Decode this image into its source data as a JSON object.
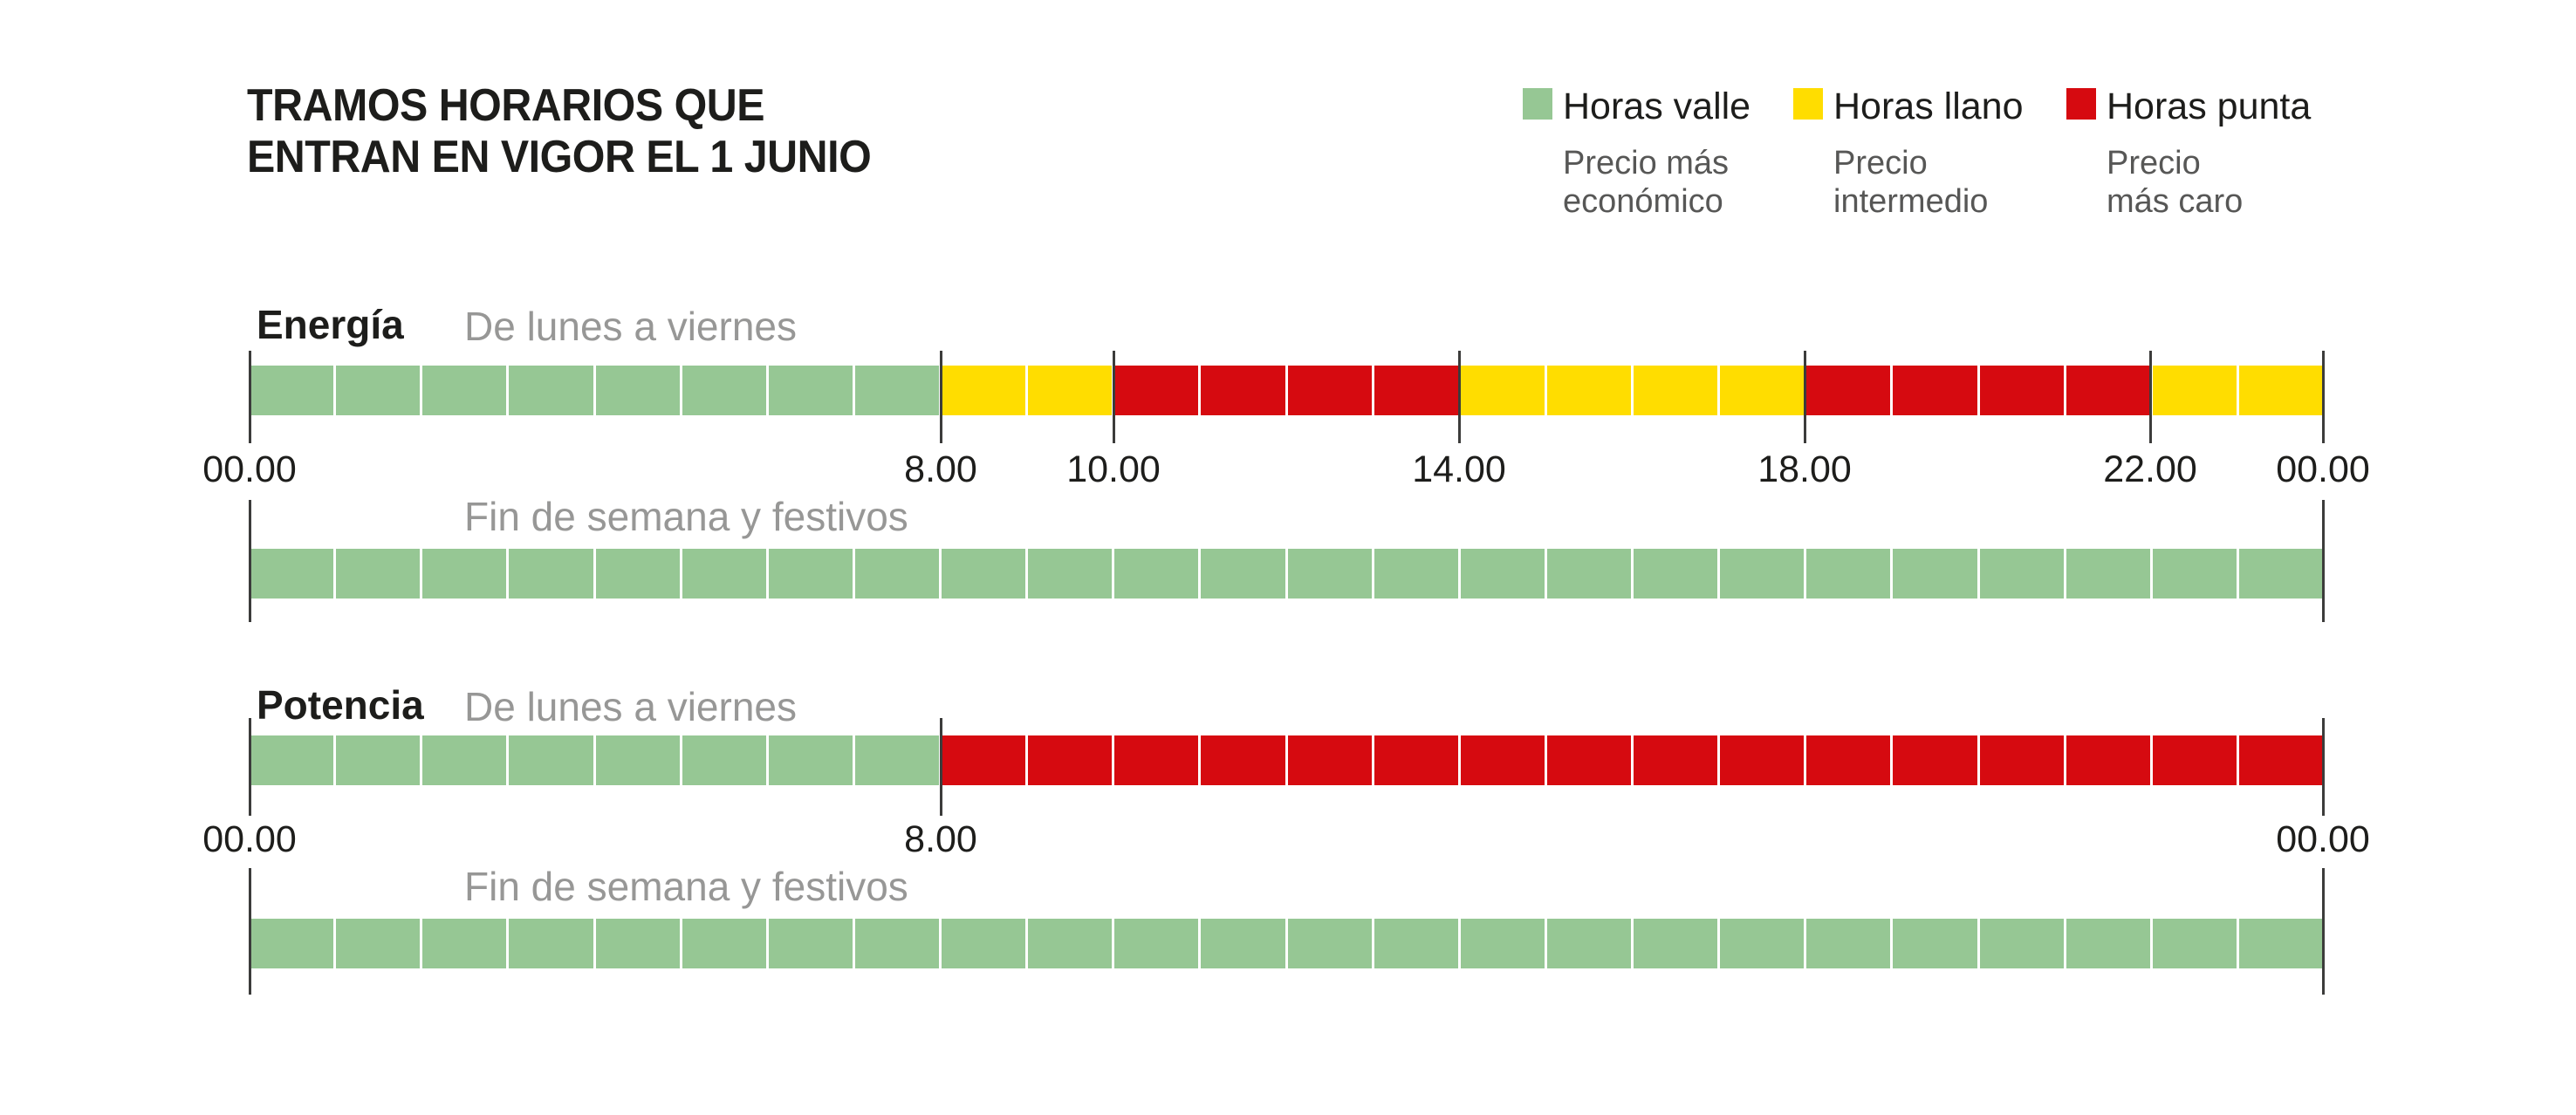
{
  "title": {
    "line1": "TRAMOS HORARIOS QUE",
    "line2": "ENTRAN EN VIGOR EL 1 JUNIO"
  },
  "legend": [
    {
      "key": "valle",
      "label": "Horas valle",
      "desc_line1": "Precio más",
      "desc_line2": "económico",
      "color": "#96c794"
    },
    {
      "key": "llano",
      "label": "Horas llano",
      "desc_line1": "Precio",
      "desc_line2": "intermedio",
      "color": "#ffdd00"
    },
    {
      "key": "punta",
      "label": "Horas punta",
      "desc_line1": "Precio",
      "desc_line2": "más caro",
      "color": "#d60a10"
    }
  ],
  "colors": {
    "valle": "#96c794",
    "llano": "#ffdd00",
    "punta": "#d60a10",
    "tick": "#3c3c3b",
    "axis_text": "#1d1d1b",
    "row_sublabel": "#979796",
    "legend_desc": "#575756"
  },
  "chart_data": {
    "type": "bar",
    "title": "TRAMOS HORARIOS QUE ENTRAN EN VIGOR EL 1 JUNIO",
    "x_unit": "hours",
    "x_range": [
      0,
      24
    ],
    "hours_per_row": 24,
    "grid": false,
    "legend_position": "top-right",
    "category_names": {
      "valle": "Horas valle",
      "llano": "Horas llano",
      "punta": "Horas punta"
    },
    "sections": [
      {
        "name": "Energía",
        "rows": [
          {
            "label": "De lunes a viernes",
            "segments": [
              {
                "category": "valle",
                "from": 0,
                "to": 8
              },
              {
                "category": "llano",
                "from": 8,
                "to": 10
              },
              {
                "category": "punta",
                "from": 10,
                "to": 14
              },
              {
                "category": "llano",
                "from": 14,
                "to": 18
              },
              {
                "category": "punta",
                "from": 18,
                "to": 22
              },
              {
                "category": "llano",
                "from": 22,
                "to": 24
              }
            ],
            "ticks": [
              {
                "hour": 0,
                "label": "00.00"
              },
              {
                "hour": 8,
                "label": "8.00"
              },
              {
                "hour": 10,
                "label": "10.00"
              },
              {
                "hour": 14,
                "label": "14.00"
              },
              {
                "hour": 18,
                "label": "18.00"
              },
              {
                "hour": 22,
                "label": "22.00"
              },
              {
                "hour": 24,
                "label": "00.00"
              }
            ]
          },
          {
            "label": "Fin de semana y festivos",
            "segments": [
              {
                "category": "valle",
                "from": 0,
                "to": 24
              }
            ],
            "ticks": [
              {
                "hour": 0
              },
              {
                "hour": 24
              }
            ]
          }
        ]
      },
      {
        "name": "Potencia",
        "rows": [
          {
            "label": "De lunes a viernes",
            "segments": [
              {
                "category": "valle",
                "from": 0,
                "to": 8
              },
              {
                "category": "punta",
                "from": 8,
                "to": 24
              }
            ],
            "ticks": [
              {
                "hour": 0,
                "label": "00.00"
              },
              {
                "hour": 8,
                "label": "8.00"
              },
              {
                "hour": 24,
                "label": "00.00"
              }
            ]
          },
          {
            "label": "Fin de semana y festivos",
            "segments": [
              {
                "category": "valle",
                "from": 0,
                "to": 24
              }
            ],
            "ticks": [
              {
                "hour": 0
              },
              {
                "hour": 24
              }
            ]
          }
        ]
      }
    ]
  }
}
